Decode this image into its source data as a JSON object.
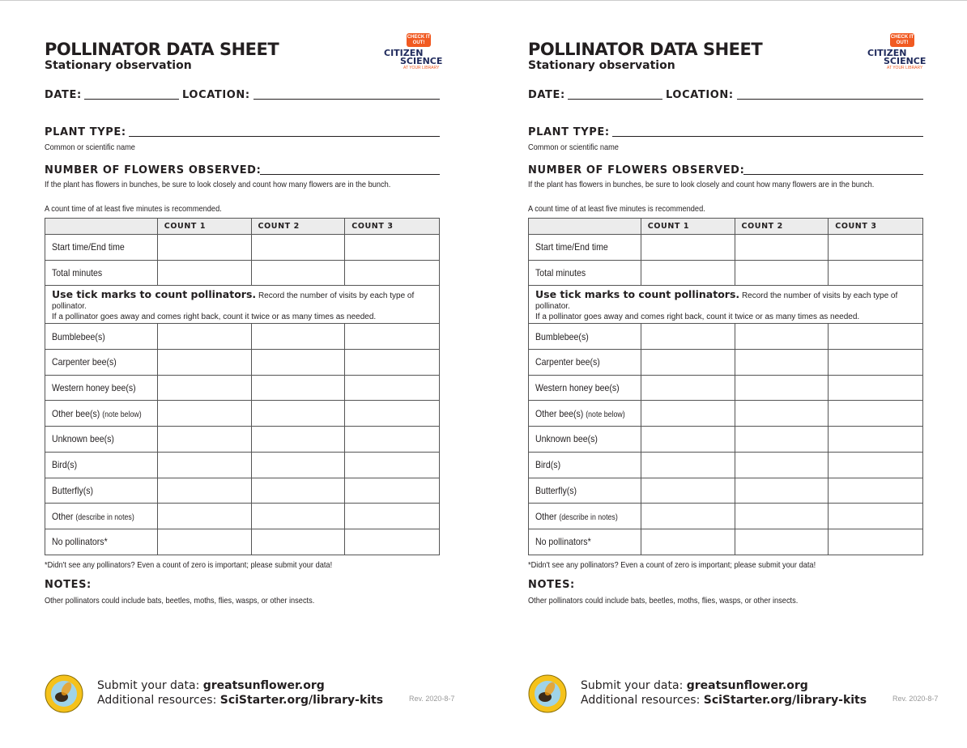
{
  "title": "POLLINATOR DATA SHEET",
  "subtitle": "Stationary observation",
  "logo": {
    "bubble": "CHECK IT OUT!",
    "line1": "CITIZEN",
    "line2": "SCIENCE",
    "line3": "AT YOUR LIBRARY",
    "accent": "#f15a22",
    "navy": "#1f2a5c"
  },
  "fields": {
    "date": "DATE:",
    "location": "LOCATION:",
    "plant_type": "PLANT TYPE:",
    "plant_type_hint": "Common or scientific name",
    "flowers": "NUMBER OF FLOWERS OBSERVED:",
    "flowers_hint": "If the plant has flowers in bunches, be sure to look closely and count how many flowers are in the bunch."
  },
  "count_note": "A count time of at least five minutes is recommended.",
  "table": {
    "headers": [
      "",
      "COUNT 1",
      "COUNT 2",
      "COUNT 3"
    ],
    "time_rows": [
      "Start time/End time",
      "Total minutes"
    ],
    "instruction_bold": "Use tick marks to count pollinators.",
    "instruction_rest": " Record the number of visits by each type of pollinator.",
    "instruction_line2": "If a pollinator goes away and comes right back, count it twice or as many times as needed.",
    "pollinator_rows": [
      {
        "label": "Bumblebee(s)",
        "note": ""
      },
      {
        "label": "Carpenter bee(s)",
        "note": ""
      },
      {
        "label": "Western honey bee(s)",
        "note": ""
      },
      {
        "label": "Other bee(s)",
        "note": "(note below)"
      },
      {
        "label": "Unknown bee(s)",
        "note": ""
      },
      {
        "label": "Bird(s)",
        "note": ""
      },
      {
        "label": "Butterfly(s)",
        "note": ""
      },
      {
        "label": "Other",
        "note": "(describe in notes)"
      },
      {
        "label": "No pollinators*",
        "note": ""
      }
    ]
  },
  "footnote": "*Didn't see any pollinators? Even a count of zero is important; please submit your data!",
  "notes_label": "NOTES:",
  "notes_text": "Other pollinators could include bats, beetles, moths, flies, wasps, or other insects.",
  "footer": {
    "submit_label": "Submit your data: ",
    "submit_link": "greatsunflower.org",
    "resources_label": "Additional resources: ",
    "resources_link": "SciStarter.org/library-kits",
    "revision": "Rev. 2020-8-7",
    "seal_text": "THE GREAT SUNFLOWER PROJECT"
  }
}
